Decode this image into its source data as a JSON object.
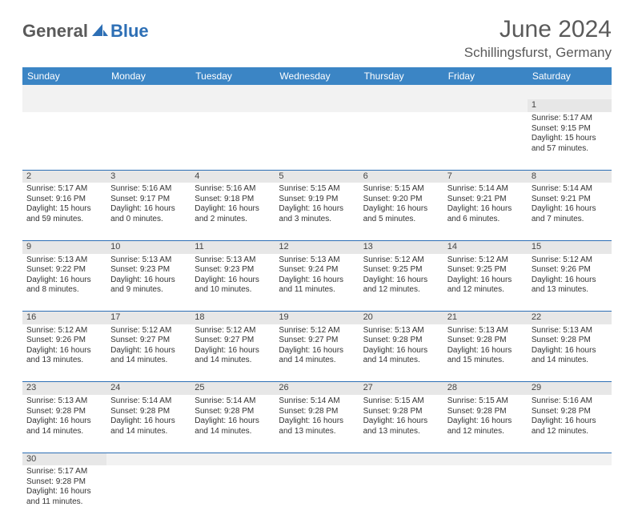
{
  "brand": {
    "main": "General",
    "accent": "Blue"
  },
  "title": "June 2024",
  "location": "Schillingsfurst, Germany",
  "colors": {
    "header_bg": "#3b85c5",
    "header_text": "#ffffff",
    "row_divider": "#2d6fb5",
    "daynum_bg": "#e7e7e7",
    "blank_bg": "#f2f2f2",
    "logo_main": "#5a5a5a",
    "logo_accent": "#2d6fb5"
  },
  "day_headers": [
    "Sunday",
    "Monday",
    "Tuesday",
    "Wednesday",
    "Thursday",
    "Friday",
    "Saturday"
  ],
  "weeks": [
    {
      "nums": [
        "",
        "",
        "",
        "",
        "",
        "",
        "1"
      ],
      "cells": [
        null,
        null,
        null,
        null,
        null,
        null,
        {
          "sunrise": "Sunrise: 5:17 AM",
          "sunset": "Sunset: 9:15 PM",
          "daylight1": "Daylight: 15 hours",
          "daylight2": "and 57 minutes."
        }
      ]
    },
    {
      "nums": [
        "2",
        "3",
        "4",
        "5",
        "6",
        "7",
        "8"
      ],
      "cells": [
        {
          "sunrise": "Sunrise: 5:17 AM",
          "sunset": "Sunset: 9:16 PM",
          "daylight1": "Daylight: 15 hours",
          "daylight2": "and 59 minutes."
        },
        {
          "sunrise": "Sunrise: 5:16 AM",
          "sunset": "Sunset: 9:17 PM",
          "daylight1": "Daylight: 16 hours",
          "daylight2": "and 0 minutes."
        },
        {
          "sunrise": "Sunrise: 5:16 AM",
          "sunset": "Sunset: 9:18 PM",
          "daylight1": "Daylight: 16 hours",
          "daylight2": "and 2 minutes."
        },
        {
          "sunrise": "Sunrise: 5:15 AM",
          "sunset": "Sunset: 9:19 PM",
          "daylight1": "Daylight: 16 hours",
          "daylight2": "and 3 minutes."
        },
        {
          "sunrise": "Sunrise: 5:15 AM",
          "sunset": "Sunset: 9:20 PM",
          "daylight1": "Daylight: 16 hours",
          "daylight2": "and 5 minutes."
        },
        {
          "sunrise": "Sunrise: 5:14 AM",
          "sunset": "Sunset: 9:21 PM",
          "daylight1": "Daylight: 16 hours",
          "daylight2": "and 6 minutes."
        },
        {
          "sunrise": "Sunrise: 5:14 AM",
          "sunset": "Sunset: 9:21 PM",
          "daylight1": "Daylight: 16 hours",
          "daylight2": "and 7 minutes."
        }
      ]
    },
    {
      "nums": [
        "9",
        "10",
        "11",
        "12",
        "13",
        "14",
        "15"
      ],
      "cells": [
        {
          "sunrise": "Sunrise: 5:13 AM",
          "sunset": "Sunset: 9:22 PM",
          "daylight1": "Daylight: 16 hours",
          "daylight2": "and 8 minutes."
        },
        {
          "sunrise": "Sunrise: 5:13 AM",
          "sunset": "Sunset: 9:23 PM",
          "daylight1": "Daylight: 16 hours",
          "daylight2": "and 9 minutes."
        },
        {
          "sunrise": "Sunrise: 5:13 AM",
          "sunset": "Sunset: 9:23 PM",
          "daylight1": "Daylight: 16 hours",
          "daylight2": "and 10 minutes."
        },
        {
          "sunrise": "Sunrise: 5:13 AM",
          "sunset": "Sunset: 9:24 PM",
          "daylight1": "Daylight: 16 hours",
          "daylight2": "and 11 minutes."
        },
        {
          "sunrise": "Sunrise: 5:12 AM",
          "sunset": "Sunset: 9:25 PM",
          "daylight1": "Daylight: 16 hours",
          "daylight2": "and 12 minutes."
        },
        {
          "sunrise": "Sunrise: 5:12 AM",
          "sunset": "Sunset: 9:25 PM",
          "daylight1": "Daylight: 16 hours",
          "daylight2": "and 12 minutes."
        },
        {
          "sunrise": "Sunrise: 5:12 AM",
          "sunset": "Sunset: 9:26 PM",
          "daylight1": "Daylight: 16 hours",
          "daylight2": "and 13 minutes."
        }
      ]
    },
    {
      "nums": [
        "16",
        "17",
        "18",
        "19",
        "20",
        "21",
        "22"
      ],
      "cells": [
        {
          "sunrise": "Sunrise: 5:12 AM",
          "sunset": "Sunset: 9:26 PM",
          "daylight1": "Daylight: 16 hours",
          "daylight2": "and 13 minutes."
        },
        {
          "sunrise": "Sunrise: 5:12 AM",
          "sunset": "Sunset: 9:27 PM",
          "daylight1": "Daylight: 16 hours",
          "daylight2": "and 14 minutes."
        },
        {
          "sunrise": "Sunrise: 5:12 AM",
          "sunset": "Sunset: 9:27 PM",
          "daylight1": "Daylight: 16 hours",
          "daylight2": "and 14 minutes."
        },
        {
          "sunrise": "Sunrise: 5:12 AM",
          "sunset": "Sunset: 9:27 PM",
          "daylight1": "Daylight: 16 hours",
          "daylight2": "and 14 minutes."
        },
        {
          "sunrise": "Sunrise: 5:13 AM",
          "sunset": "Sunset: 9:28 PM",
          "daylight1": "Daylight: 16 hours",
          "daylight2": "and 14 minutes."
        },
        {
          "sunrise": "Sunrise: 5:13 AM",
          "sunset": "Sunset: 9:28 PM",
          "daylight1": "Daylight: 16 hours",
          "daylight2": "and 15 minutes."
        },
        {
          "sunrise": "Sunrise: 5:13 AM",
          "sunset": "Sunset: 9:28 PM",
          "daylight1": "Daylight: 16 hours",
          "daylight2": "and 14 minutes."
        }
      ]
    },
    {
      "nums": [
        "23",
        "24",
        "25",
        "26",
        "27",
        "28",
        "29"
      ],
      "cells": [
        {
          "sunrise": "Sunrise: 5:13 AM",
          "sunset": "Sunset: 9:28 PM",
          "daylight1": "Daylight: 16 hours",
          "daylight2": "and 14 minutes."
        },
        {
          "sunrise": "Sunrise: 5:14 AM",
          "sunset": "Sunset: 9:28 PM",
          "daylight1": "Daylight: 16 hours",
          "daylight2": "and 14 minutes."
        },
        {
          "sunrise": "Sunrise: 5:14 AM",
          "sunset": "Sunset: 9:28 PM",
          "daylight1": "Daylight: 16 hours",
          "daylight2": "and 14 minutes."
        },
        {
          "sunrise": "Sunrise: 5:14 AM",
          "sunset": "Sunset: 9:28 PM",
          "daylight1": "Daylight: 16 hours",
          "daylight2": "and 13 minutes."
        },
        {
          "sunrise": "Sunrise: 5:15 AM",
          "sunset": "Sunset: 9:28 PM",
          "daylight1": "Daylight: 16 hours",
          "daylight2": "and 13 minutes."
        },
        {
          "sunrise": "Sunrise: 5:15 AM",
          "sunset": "Sunset: 9:28 PM",
          "daylight1": "Daylight: 16 hours",
          "daylight2": "and 12 minutes."
        },
        {
          "sunrise": "Sunrise: 5:16 AM",
          "sunset": "Sunset: 9:28 PM",
          "daylight1": "Daylight: 16 hours",
          "daylight2": "and 12 minutes."
        }
      ]
    },
    {
      "nums": [
        "30",
        "",
        "",
        "",
        "",
        "",
        ""
      ],
      "cells": [
        {
          "sunrise": "Sunrise: 5:17 AM",
          "sunset": "Sunset: 9:28 PM",
          "daylight1": "Daylight: 16 hours",
          "daylight2": "and 11 minutes."
        },
        null,
        null,
        null,
        null,
        null,
        null
      ]
    }
  ]
}
